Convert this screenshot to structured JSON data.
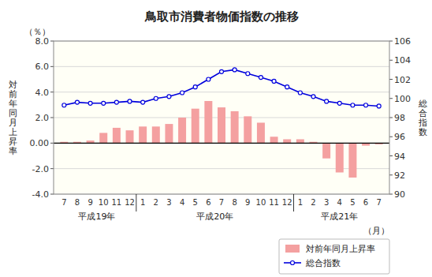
{
  "chart_data": {
    "type": "bar",
    "title": "鳥取市消費者物価指数の推移",
    "y_label": "対\n前\n年\n同\n月\n上\n昇\n率",
    "y_unit_label": "（％）",
    "y2_label": "総\n合\n指\n数",
    "x_label": "（月）",
    "categories": [
      "7",
      "8",
      "9",
      "10",
      "11",
      "12",
      "1",
      "2",
      "3",
      "4",
      "5",
      "6",
      "7",
      "8",
      "9",
      "10",
      "11",
      "12",
      "1",
      "2",
      "3",
      "4",
      "5",
      "6",
      "7"
    ],
    "groups": [
      {
        "label": "平成19年",
        "start": 0,
        "end": 5
      },
      {
        "label": "平成20年",
        "start": 6,
        "end": 17
      },
      {
        "label": "平成21年",
        "start": 18,
        "end": 24
      }
    ],
    "series": [
      {
        "name": "対前年同月上昇率",
        "type": "bar",
        "color": "#f4a0a0",
        "values": [
          0.1,
          0.1,
          0.2,
          0.8,
          1.2,
          1.0,
          1.3,
          1.3,
          1.5,
          2.0,
          2.7,
          3.3,
          2.8,
          2.5,
          2.1,
          1.6,
          0.5,
          0.3,
          0.3,
          0.1,
          -1.2,
          -2.3,
          -2.7,
          -0.2,
          -0.1
        ]
      },
      {
        "name": "総合指数",
        "type": "line",
        "axis": "y2",
        "color": "#0000dd",
        "marker": "circle",
        "values": [
          99.3,
          99.6,
          99.5,
          99.5,
          99.6,
          99.7,
          99.6,
          100.0,
          100.2,
          100.6,
          101.2,
          102.0,
          102.8,
          103.0,
          102.6,
          102.2,
          101.8,
          101.2,
          100.6,
          100.2,
          99.7,
          99.5,
          99.3,
          99.3,
          99.2
        ]
      }
    ],
    "ylim": [
      -4.0,
      8.0
    ],
    "yticks": [
      {
        "value": -4.0,
        "label": "-4.0"
      },
      {
        "value": -2.0,
        "label": "-2.0"
      },
      {
        "value": 0.0,
        "label": "0.00"
      },
      {
        "value": 2.0,
        "label": "2.0"
      },
      {
        "value": 4.0,
        "label": "4.0"
      },
      {
        "value": 6.0,
        "label": "6.0"
      },
      {
        "value": 8.0,
        "label": "8.0"
      }
    ],
    "y2lim": [
      90,
      106
    ],
    "y2ticks": [
      90,
      92,
      94,
      96,
      98,
      100,
      102,
      104,
      106
    ],
    "grid": true,
    "legend": "lower right"
  }
}
